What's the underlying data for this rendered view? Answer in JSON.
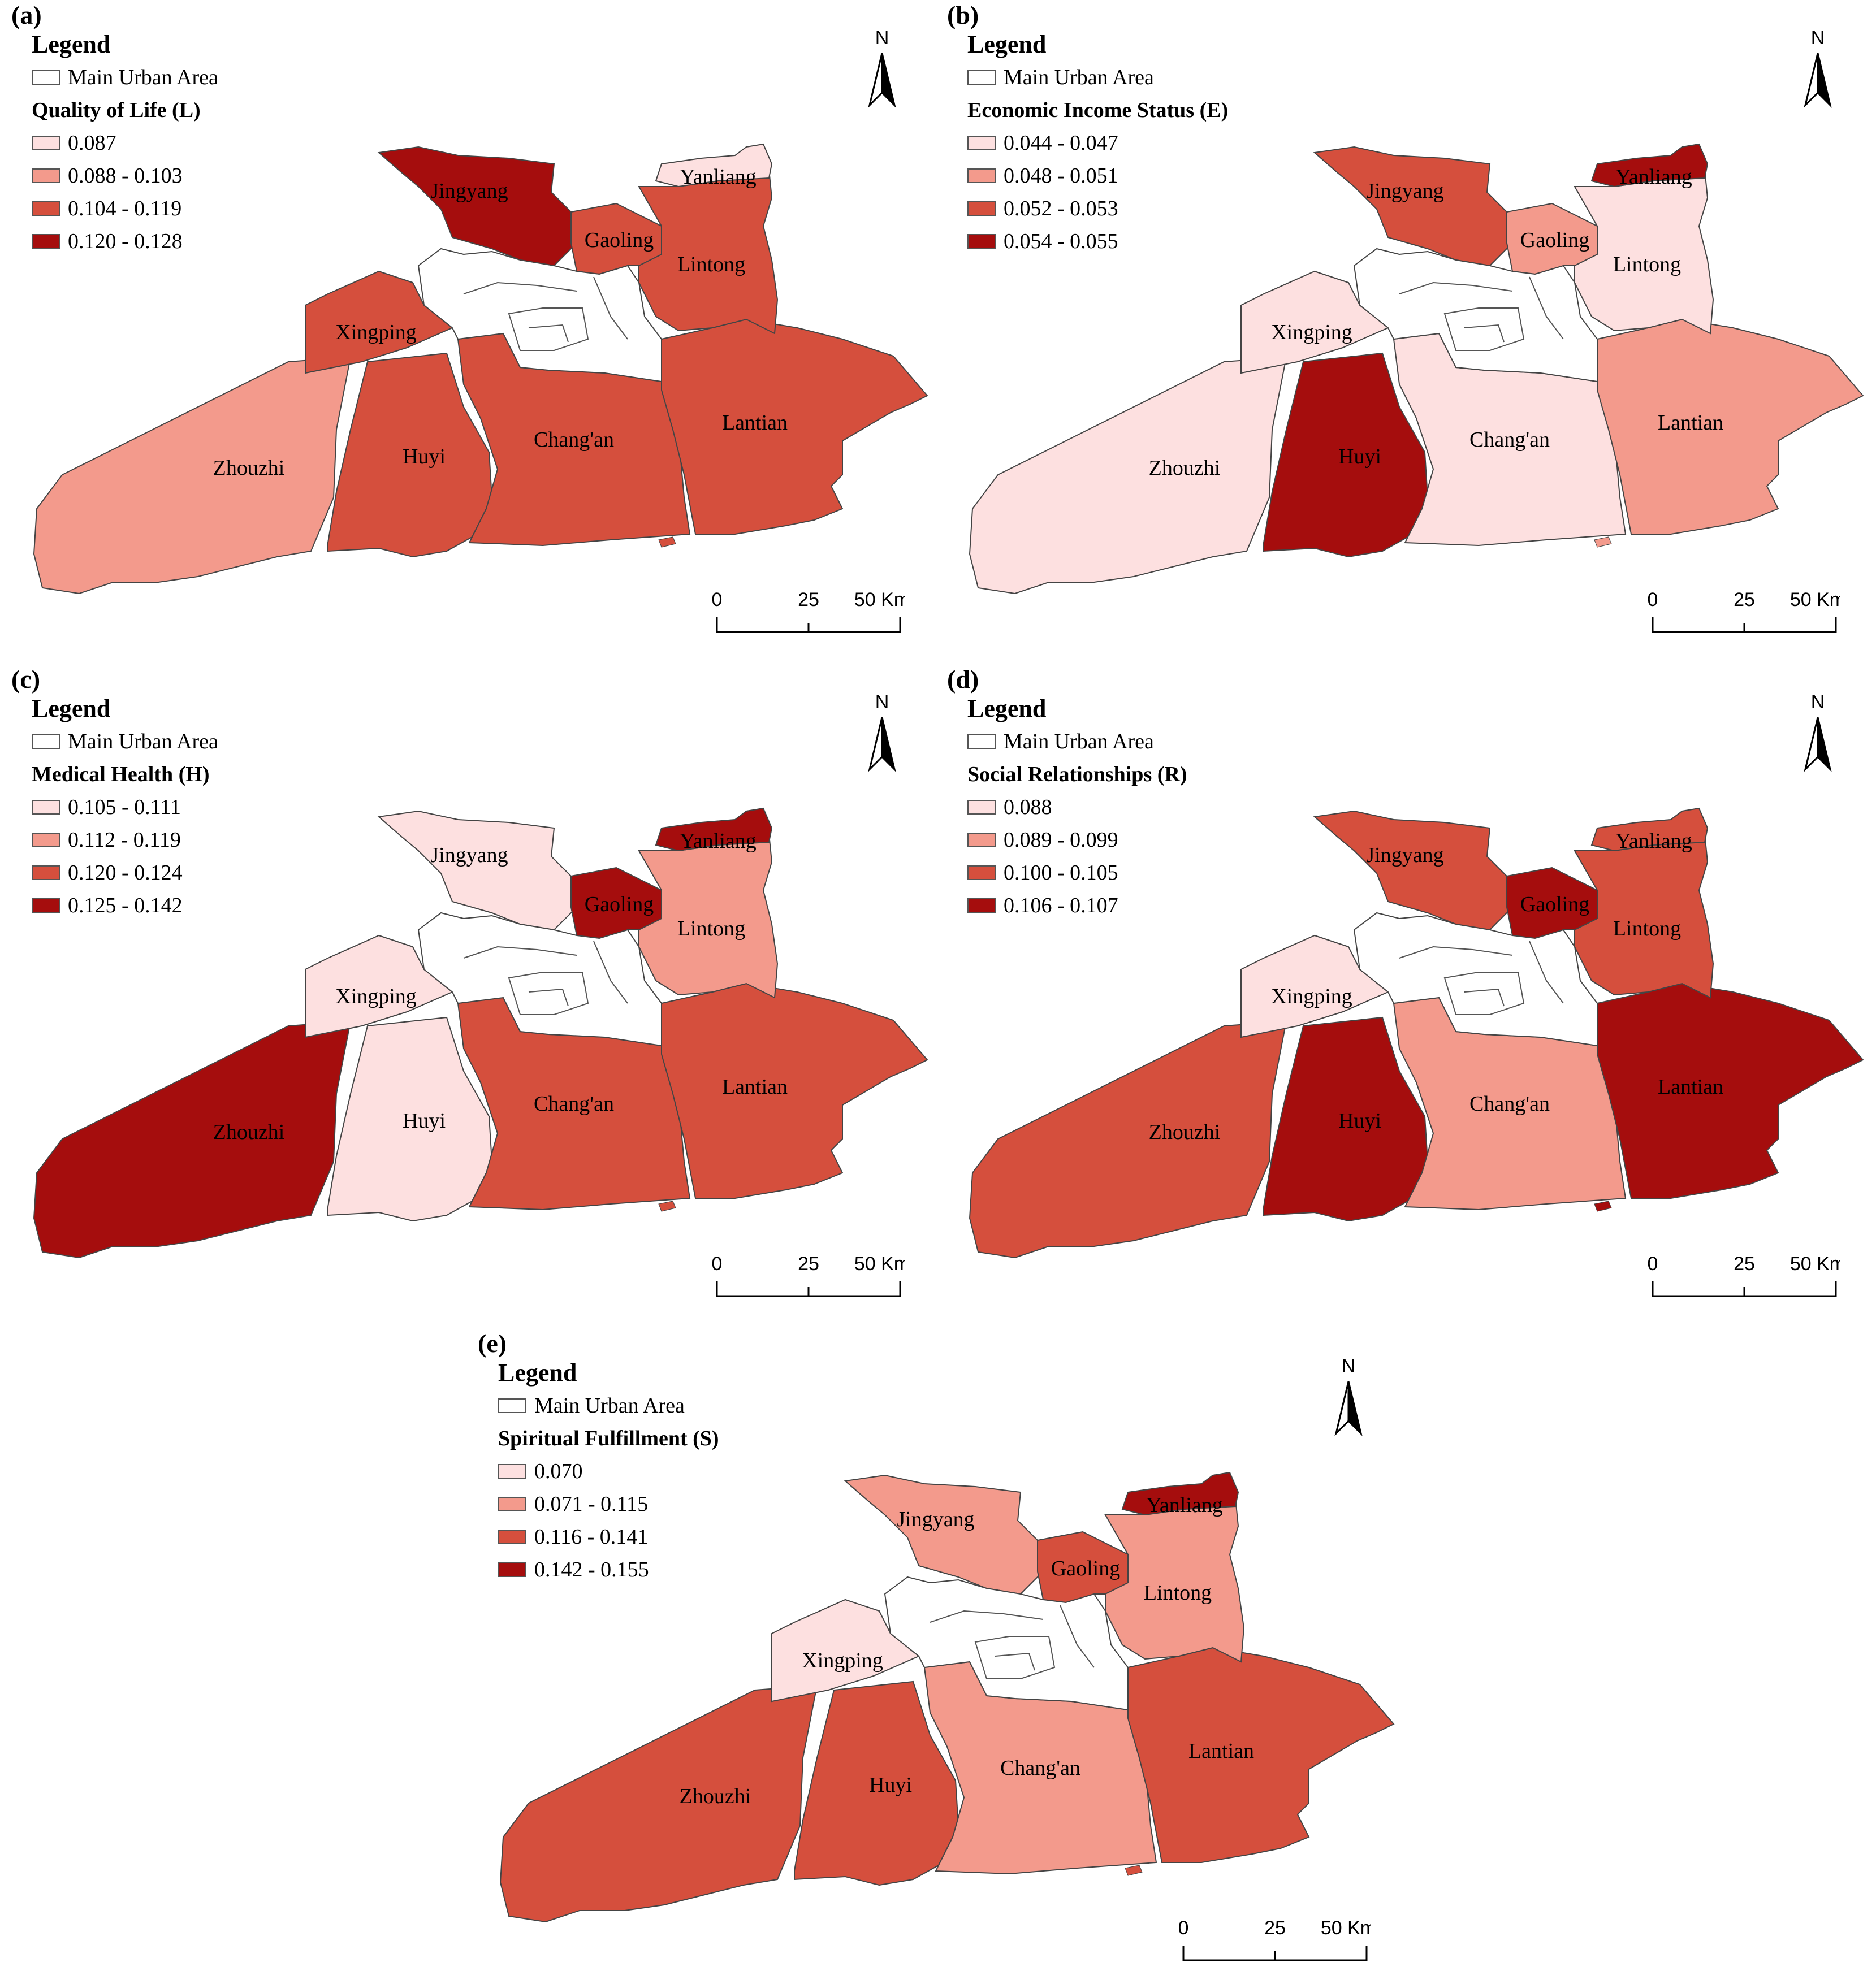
{
  "colors": {
    "class1": "#fde0e0",
    "class2": "#f39a8c",
    "class3": "#d54f3d",
    "class4": "#a50d0d",
    "urban": "#ffffff",
    "outline": "#444444"
  },
  "common": {
    "legend_label": "Legend",
    "urban_label": "Main Urban Area",
    "north_label": "N",
    "scale": {
      "ticks": [
        "0",
        "25",
        "50"
      ],
      "unit": "Km"
    },
    "districts": [
      "Zhouzhi",
      "Huyi",
      "Chang'an",
      "Lantian",
      "Xingping",
      "Jingyang",
      "Gaoling",
      "Lintong",
      "Yanliang"
    ]
  },
  "panels": [
    {
      "label": "(a)",
      "title": "Quality of Life (L)",
      "classes": [
        "0.087",
        "0.088 - 0.103",
        "0.104 - 0.119",
        "0.120 - 0.128"
      ],
      "district_class": {
        "Zhouzhi": 2,
        "Huyi": 3,
        "Chang'an": 3,
        "Lantian": 3,
        "Xingping": 3,
        "Jingyang": 4,
        "Gaoling": 3,
        "Lintong": 3,
        "Yanliang": 1
      }
    },
    {
      "label": "(b)",
      "title": "Economic Income Status (E)",
      "classes": [
        "0.044 - 0.047",
        "0.048 - 0.051",
        "0.052 - 0.053",
        "0.054 - 0.055"
      ],
      "district_class": {
        "Zhouzhi": 1,
        "Huyi": 4,
        "Chang'an": 1,
        "Lantian": 2,
        "Xingping": 1,
        "Jingyang": 3,
        "Gaoling": 2,
        "Lintong": 1,
        "Yanliang": 4
      }
    },
    {
      "label": "(c)",
      "title": "Medical Health (H)",
      "classes": [
        "0.105 - 0.111",
        "0.112 - 0.119",
        "0.120 - 0.124",
        "0.125 - 0.142"
      ],
      "district_class": {
        "Zhouzhi": 4,
        "Huyi": 1,
        "Chang'an": 3,
        "Lantian": 3,
        "Xingping": 1,
        "Jingyang": 1,
        "Gaoling": 4,
        "Lintong": 2,
        "Yanliang": 4
      }
    },
    {
      "label": "(d)",
      "title": "Social Relationships (R)",
      "classes": [
        "0.088",
        "0.089 - 0.099",
        "0.100 - 0.105",
        "0.106 - 0.107"
      ],
      "district_class": {
        "Zhouzhi": 3,
        "Huyi": 4,
        "Chang'an": 2,
        "Lantian": 4,
        "Xingping": 1,
        "Jingyang": 3,
        "Gaoling": 4,
        "Lintong": 3,
        "Yanliang": 3
      }
    },
    {
      "label": "(e)",
      "title": "Spiritual Fulfillment (S)",
      "classes": [
        "0.070",
        "0.071 - 0.115",
        "0.116 - 0.141",
        "0.142 - 0.155"
      ],
      "district_class": {
        "Zhouzhi": 3,
        "Huyi": 3,
        "Chang'an": 2,
        "Lantian": 3,
        "Xingping": 1,
        "Jingyang": 2,
        "Gaoling": 3,
        "Lintong": 2,
        "Yanliang": 4
      }
    }
  ]
}
